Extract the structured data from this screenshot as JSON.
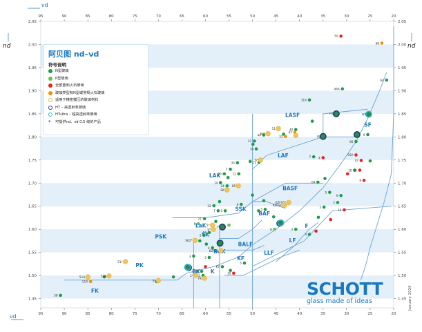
{
  "chart_data": {
    "type": "scatter",
    "title": "阿贝图 nd–νd",
    "xlabel": "νd",
    "ylabel": "nd",
    "xlim": [
      95,
      20
    ],
    "ylim": [
      1.43,
      2.05
    ],
    "x_ticks": [
      "95",
      "90",
      "85",
      "80",
      "75",
      "70",
      "65",
      "60",
      "55",
      "50",
      "45",
      "40",
      "35",
      "30",
      "25",
      "20"
    ],
    "y_ticks": [
      "2.05",
      "2.00",
      "1.95",
      "1.90",
      "1.85",
      "1.80",
      "1.75",
      "1.70",
      "1.65",
      "1.60",
      "1.55",
      "1.50",
      "1.45"
    ],
    "regions": [
      {
        "name": "LASF",
        "x": 41.5,
        "y": 1.843
      },
      {
        "name": "SF",
        "x": 25.5,
        "y": 1.822
      },
      {
        "name": "LAF",
        "x": 43.5,
        "y": 1.756
      },
      {
        "name": "BASF",
        "x": 42,
        "y": 1.685
      },
      {
        "name": "LAK",
        "x": 58,
        "y": 1.712
      },
      {
        "name": "SSK",
        "x": 52.5,
        "y": 1.64
      },
      {
        "name": "BAF",
        "x": 47.5,
        "y": 1.63
      },
      {
        "name": "PSK",
        "x": 69.5,
        "y": 1.58
      },
      {
        "name": "LaK",
        "x": 61,
        "y": 1.604
      },
      {
        "name": "SK",
        "x": 60,
        "y": 1.585
      },
      {
        "name": "BALF",
        "x": 51.5,
        "y": 1.564
      },
      {
        "name": "BAK",
        "x": 57,
        "y": 1.548
      },
      {
        "name": "F",
        "x": 38.5,
        "y": 1.603
      },
      {
        "name": "LF",
        "x": 41.5,
        "y": 1.572
      },
      {
        "name": "LLF",
        "x": 46.5,
        "y": 1.545
      },
      {
        "name": "KF",
        "x": 52.5,
        "y": 1.533
      },
      {
        "name": "PK",
        "x": 74,
        "y": 1.518
      },
      {
        "name": "BK",
        "x": 62,
        "y": 1.505
      },
      {
        "name": "K",
        "x": 58.5,
        "y": 1.505
      },
      {
        "name": "FK",
        "x": 83.5,
        "y": 1.463
      }
    ],
    "series": [
      {
        "name": "N型玻璃",
        "color": "#1f9a48",
        "points": [
          {
            "x": 90.8,
            "y": 1.457,
            "label": "58"
          },
          {
            "x": 81.5,
            "y": 1.497,
            "label": ""
          },
          {
            "x": 70.4,
            "y": 1.487,
            "label": ""
          },
          {
            "x": 66.8,
            "y": 1.497,
            "label": ""
          },
          {
            "x": 64.2,
            "y": 1.517,
            "label": ""
          },
          {
            "x": 62.5,
            "y": 1.542,
            "label": "3"
          },
          {
            "x": 60.8,
            "y": 1.509,
            "label": "10"
          },
          {
            "x": 60.5,
            "y": 1.5,
            "label": "2"
          },
          {
            "x": 59.2,
            "y": 1.539,
            "label": "5"
          },
          {
            "x": 58.5,
            "y": 1.56,
            "label": "4"
          },
          {
            "x": 59.8,
            "y": 1.568,
            "label": ""
          },
          {
            "x": 61.2,
            "y": 1.575,
            "label": ""
          },
          {
            "x": 60.3,
            "y": 1.587,
            "label": "2"
          },
          {
            "x": 59.2,
            "y": 1.593,
            "label": "14"
          },
          {
            "x": 58.3,
            "y": 1.599,
            "label": ""
          },
          {
            "x": 57.8,
            "y": 1.617,
            "label": ""
          },
          {
            "x": 60.2,
            "y": 1.623,
            "label": "21"
          },
          {
            "x": 57.3,
            "y": 1.64,
            "label": "7"
          },
          {
            "x": 55.8,
            "y": 1.64,
            "label": "5"
          },
          {
            "x": 58.2,
            "y": 1.651,
            "label": "22"
          },
          {
            "x": 57.0,
            "y": 1.66,
            "label": ""
          },
          {
            "x": 55.4,
            "y": 1.694,
            "label": "34"
          },
          {
            "x": 56.8,
            "y": 1.701,
            "label": "14"
          },
          {
            "x": 55.2,
            "y": 1.712,
            "label": ""
          },
          {
            "x": 56.0,
            "y": 1.72,
            "label": "10"
          },
          {
            "x": 54.7,
            "y": 1.73,
            "label": "7"
          },
          {
            "x": 53.2,
            "y": 1.744,
            "label": "33"
          },
          {
            "x": 50.5,
            "y": 1.747,
            "label": ""
          },
          {
            "x": 48.6,
            "y": 1.745,
            "label": "11"
          },
          {
            "x": 52.9,
            "y": 1.72,
            "label": "12"
          },
          {
            "x": 52.4,
            "y": 1.654,
            "label": "8"
          },
          {
            "x": 50.0,
            "y": 1.674,
            "label": ""
          },
          {
            "x": 47.6,
            "y": 1.662,
            "label": ""
          },
          {
            "x": 48.7,
            "y": 1.64,
            "label": ""
          },
          {
            "x": 47.3,
            "y": 1.643,
            "label": "5"
          },
          {
            "x": 45.5,
            "y": 1.627,
            "label": ""
          },
          {
            "x": 49.6,
            "y": 1.791,
            "label": "21"
          },
          {
            "x": 49.2,
            "y": 1.774,
            "label": "34"
          },
          {
            "x": 49.9,
            "y": 1.784,
            "label": ""
          },
          {
            "x": 47.6,
            "y": 1.804,
            "label": "44"
          },
          {
            "x": 43.4,
            "y": 1.806,
            "label": ""
          },
          {
            "x": 40.8,
            "y": 1.816,
            "label": "40"
          },
          {
            "x": 37.3,
            "y": 1.834,
            "label": ""
          },
          {
            "x": 37.9,
            "y": 1.88,
            "label": "31A"
          },
          {
            "x": 30.9,
            "y": 1.904,
            "label": "46A"
          },
          {
            "x": 21.5,
            "y": 1.923,
            "label": "64"
          },
          {
            "x": 37.0,
            "y": 1.757,
            "label": "7"
          },
          {
            "x": 36.1,
            "y": 1.702,
            "label": "64"
          },
          {
            "x": 34.6,
            "y": 1.71,
            "label": ""
          },
          {
            "x": 33.6,
            "y": 1.68,
            "label": "5"
          },
          {
            "x": 31.9,
            "y": 1.658,
            "label": "2"
          },
          {
            "x": 31.2,
            "y": 1.673,
            "label": "8"
          },
          {
            "x": 34.8,
            "y": 1.648,
            "label": "2"
          },
          {
            "x": 36.0,
            "y": 1.626,
            "label": ""
          },
          {
            "x": 40.8,
            "y": 1.6,
            "label": "2"
          },
          {
            "x": 37.9,
            "y": 1.589,
            "label": "4"
          },
          {
            "x": 51.7,
            "y": 1.527,
            "label": "5"
          },
          {
            "x": 54.7,
            "y": 1.511,
            "label": ""
          },
          {
            "x": 56.4,
            "y": 1.519,
            "label": "K7"
          },
          {
            "x": 28.3,
            "y": 1.728,
            "label": "10"
          },
          {
            "x": 25.5,
            "y": 1.805,
            "label": "6"
          },
          {
            "x": 28.0,
            "y": 1.79,
            "label": "66"
          },
          {
            "x": 25.0,
            "y": 1.748,
            "label": ""
          }
        ]
      },
      {
        "name": "P型玻璃",
        "color": "#69bf52",
        "points": [
          {
            "x": 45.3,
            "y": 1.6,
            "label": "8"
          },
          {
            "x": 61.5,
            "y": 1.612,
            "label": "P"
          },
          {
            "x": 55.0,
            "y": 1.609,
            "label": ""
          }
        ]
      },
      {
        "name": "全部重和火石玻璃",
        "color": "#e52421",
        "points": [
          {
            "x": 31.2,
            "y": 2.018,
            "label": "55"
          },
          {
            "x": 28.0,
            "y": 1.761,
            "label": "56A"
          },
          {
            "x": 26.9,
            "y": 1.749,
            "label": "57"
          },
          {
            "x": 27.2,
            "y": 1.728,
            "label": "11"
          },
          {
            "x": 26.3,
            "y": 1.706,
            "label": "8"
          },
          {
            "x": 29.8,
            "y": 1.72,
            "label": ""
          },
          {
            "x": 30.5,
            "y": 1.642,
            "label": "15"
          },
          {
            "x": 33.4,
            "y": 1.621,
            "label": ""
          },
          {
            "x": 36.5,
            "y": 1.596,
            "label": ""
          },
          {
            "x": 60.0,
            "y": 1.519,
            "label": ""
          },
          {
            "x": 54.0,
            "y": 1.505,
            "label": "10"
          },
          {
            "x": 35.0,
            "y": 1.755,
            "label": "4"
          }
        ]
      },
      {
        "name": "玻璃类型有N型或常规火石玻璃",
        "color": "#f29100",
        "points": [
          {
            "x": 22.5,
            "y": 2.003,
            "label": "68"
          },
          {
            "x": 41.0,
            "y": 1.81,
            "label": "67"
          },
          {
            "x": 43.0,
            "y": 1.801,
            "label": "33"
          },
          {
            "x": 84.4,
            "y": 1.487,
            "label": "51A"
          }
        ]
      },
      {
        "name": "适用于精密模压的玻璃材料",
        "color": "#e9b94b",
        "points": [
          {
            "x": 85.0,
            "y": 1.497,
            "label": "51A"
          },
          {
            "x": 80.5,
            "y": 1.499,
            "label": "52A"
          },
          {
            "x": 77.0,
            "y": 1.53,
            "label": "51*"
          },
          {
            "x": 70.0,
            "y": 1.489,
            "label": "5*"
          },
          {
            "x": 46.7,
            "y": 1.807,
            "label": "64*"
          },
          {
            "x": 44.5,
            "y": 1.818,
            "label": "51"
          },
          {
            "x": 40.8,
            "y": 1.803,
            "label": ""
          },
          {
            "x": 48.3,
            "y": 1.75,
            "label": "37"
          },
          {
            "x": 53.0,
            "y": 1.694,
            "label": "85"
          },
          {
            "x": 55.4,
            "y": 1.685,
            "label": "SK"
          },
          {
            "x": 42.3,
            "y": 1.658,
            "label": "KZFS5*"
          },
          {
            "x": 43.2,
            "y": 1.652,
            "label": "KZFS4"
          },
          {
            "x": 62.2,
            "y": 1.576,
            "label": "SK2*"
          },
          {
            "x": 56.7,
            "y": 1.554,
            "label": "KZFS1"
          },
          {
            "x": 60.2,
            "y": 1.494,
            "label": "FK"
          },
          {
            "x": 62.0,
            "y": 1.5,
            "label": "2*"
          },
          {
            "x": 58.5,
            "y": 1.609,
            "label": "5*"
          },
          {
            "x": 58.3,
            "y": 1.6,
            "label": "S*"
          }
        ]
      },
      {
        "name": "HT – 高透射率玻璃",
        "color": "#1e3f7a",
        "points": [
          {
            "x": 32.2,
            "y": 1.85,
            "label": "HT"
          },
          {
            "x": 35.0,
            "y": 1.801,
            "label": "45"
          },
          {
            "x": 56.4,
            "y": 1.605,
            "label": "2*"
          },
          {
            "x": 56.9,
            "y": 1.57,
            "label": ""
          },
          {
            "x": 63.6,
            "y": 1.517,
            "label": ""
          },
          {
            "x": 44.2,
            "y": 1.613,
            "label": ""
          },
          {
            "x": 27.8,
            "y": 1.805,
            "label": ""
          }
        ]
      },
      {
        "name": "HTultra – 超高透射率玻璃",
        "color": "#30b9d6",
        "points": [
          {
            "x": 25.3,
            "y": 1.849,
            "label": "HT"
          },
          {
            "x": 44.0,
            "y": 1.614,
            "label": ""
          },
          {
            "x": 63.8,
            "y": 1.518,
            "label": ""
          }
        ]
      }
    ]
  },
  "legend": {
    "title": "阿贝图 nd–νd",
    "subtitle": "符号说明",
    "items": [
      {
        "label": "N型玻璃",
        "color": "#1f9a48",
        "style": "dot"
      },
      {
        "label": "P型玻璃",
        "color": "#69bf52",
        "style": "dot"
      },
      {
        "label": "全部重和火石玻璃",
        "color": "#e52421",
        "style": "dot"
      },
      {
        "label": "玻璃类型有N型或常规火石玻璃",
        "color": "#f29100",
        "style": "dot"
      },
      {
        "label": "适用于精密模压的玻璃材料",
        "color": "#e9b94b",
        "style": "ring"
      },
      {
        "label": "HT – 高透射率玻璃",
        "color": "#1e3f7a",
        "style": "ring"
      },
      {
        "label": "HTultra – 超高透射率玻璃",
        "color": "#30b9d6",
        "style": "ring"
      },
      {
        "label": "可提供nd、νd 0.5 级的产品",
        "color": "#222222",
        "style": "star"
      }
    ]
  },
  "branding": {
    "brand": "SCHOTT",
    "tagline": "glass made of ideas",
    "date": "January 2020"
  },
  "colors": {
    "accent": "#1b78bf",
    "band": "#e3eff9",
    "border": "#6aa3d5"
  }
}
